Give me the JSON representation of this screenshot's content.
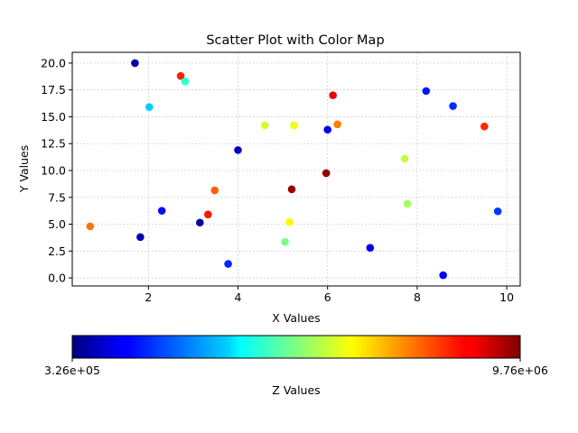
{
  "chart_data": {
    "type": "scatter",
    "title": "Scatter Plot with Color Map",
    "xlabel": "X Values",
    "ylabel": "Y Values",
    "xlim": [
      0.3,
      10.3
    ],
    "ylim": [
      -0.75,
      21.0
    ],
    "xticks": [
      2,
      4,
      6,
      8,
      10
    ],
    "xtick_labels": [
      "2",
      "4",
      "6",
      "8",
      "10"
    ],
    "yticks": [
      0.0,
      2.5,
      5.0,
      7.5,
      10.0,
      12.5,
      15.0,
      17.5,
      20.0
    ],
    "ytick_labels": [
      "0.0",
      "2.5",
      "5.0",
      "7.5",
      "10.0",
      "12.5",
      "15.0",
      "17.5",
      "20.0"
    ],
    "grid": true,
    "colormap": "jet",
    "colorbar": {
      "label": "Z Values",
      "min": 326000,
      "max": 9760000,
      "min_label": "3.26e+05",
      "max_label": "9.76e+06",
      "orientation": "horizontal"
    },
    "points": [
      {
        "x": 1.7,
        "y": 20.0,
        "z": 700000
      },
      {
        "x": 2.72,
        "y": 18.8,
        "z": 8300000
      },
      {
        "x": 2.82,
        "y": 18.3,
        "z": 4300000
      },
      {
        "x": 2.02,
        "y": 15.9,
        "z": 3400000
      },
      {
        "x": 8.2,
        "y": 17.4,
        "z": 1700000
      },
      {
        "x": 8.8,
        "y": 16.0,
        "z": 1900000
      },
      {
        "x": 6.12,
        "y": 17.0,
        "z": 8700000
      },
      {
        "x": 6.22,
        "y": 14.3,
        "z": 7400000
      },
      {
        "x": 9.5,
        "y": 14.1,
        "z": 8200000
      },
      {
        "x": 4.6,
        "y": 14.2,
        "z": 5800000
      },
      {
        "x": 5.25,
        "y": 14.2,
        "z": 6100000
      },
      {
        "x": 6.0,
        "y": 13.8,
        "z": 1300000
      },
      {
        "x": 4.0,
        "y": 11.9,
        "z": 900000
      },
      {
        "x": 7.72,
        "y": 11.1,
        "z": 5650000
      },
      {
        "x": 5.97,
        "y": 9.75,
        "z": 9600000
      },
      {
        "x": 3.48,
        "y": 8.15,
        "z": 7700000
      },
      {
        "x": 5.2,
        "y": 8.25,
        "z": 9500000
      },
      {
        "x": 7.78,
        "y": 6.9,
        "z": 5400000
      },
      {
        "x": 2.3,
        "y": 6.25,
        "z": 1600000
      },
      {
        "x": 9.8,
        "y": 6.2,
        "z": 2000000
      },
      {
        "x": 3.33,
        "y": 5.9,
        "z": 8400000
      },
      {
        "x": 3.15,
        "y": 5.15,
        "z": 600000
      },
      {
        "x": 5.15,
        "y": 5.2,
        "z": 6300000
      },
      {
        "x": 0.7,
        "y": 4.8,
        "z": 7500000
      },
      {
        "x": 1.82,
        "y": 3.8,
        "z": 800000
      },
      {
        "x": 5.05,
        "y": 3.35,
        "z": 5000000
      },
      {
        "x": 6.95,
        "y": 2.8,
        "z": 1400000
      },
      {
        "x": 3.78,
        "y": 1.3,
        "z": 1850000
      },
      {
        "x": 8.58,
        "y": 0.25,
        "z": 1450000
      }
    ]
  }
}
